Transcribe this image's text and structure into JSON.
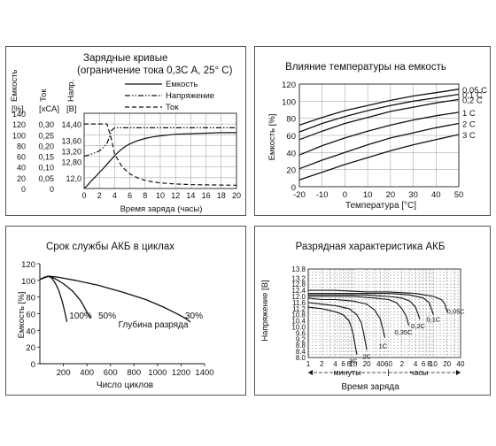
{
  "chart_data": [
    {
      "type": "line",
      "title": "Зарядные кривые",
      "subtitle": "(ограничение тока 0,3С А, 25° С)",
      "xlabel": "Время заряда (часы)",
      "xlim": [
        0,
        20
      ],
      "x_ticks": [
        "0",
        "2",
        "4",
        "6",
        "8",
        "10",
        "12",
        "14",
        "16",
        "18",
        "20"
      ],
      "axes": [
        {
          "label": "Емкость",
          "unit": "[%]",
          "ticks": [
            "140",
            "120",
            "100",
            "80",
            "60",
            "40",
            "20",
            "0"
          ],
          "range": [
            0,
            140
          ]
        },
        {
          "label": "Ток",
          "unit": "[хСА]",
          "ticks": [
            "0,30",
            "0,25",
            "0,20",
            "0,15",
            "0,10",
            "0,05",
            "0"
          ],
          "range": [
            0,
            0.35
          ]
        },
        {
          "label": "Напр.",
          "unit": "[В]",
          "ticks": [
            "14,40",
            "13,60",
            "13,20",
            "12,80",
            "12,0"
          ]
        }
      ],
      "legend": [
        {
          "name": "Емкость",
          "style": "solid"
        },
        {
          "name": "Напряжение",
          "style": "dashdot"
        },
        {
          "name": "Ток",
          "style": "dashed"
        }
      ],
      "series": [
        {
          "name": "Емкость",
          "x": [
            0,
            0.5,
            1,
            1.5,
            2,
            2.5,
            3,
            3.5,
            4,
            4.5,
            5,
            5.5,
            6,
            6.5,
            7,
            8,
            9,
            10,
            12,
            14,
            16,
            18,
            20
          ],
          "y": [
            0,
            7,
            15,
            22,
            30,
            37,
            45,
            53,
            61,
            68,
            74,
            79,
            83,
            86,
            89,
            93,
            96,
            98,
            101,
            102,
            103,
            104,
            104
          ]
        },
        {
          "name": "Напряжение",
          "x": [
            0,
            1,
            2,
            2.5,
            3,
            3.3,
            3.6,
            4,
            20
          ],
          "y": [
            60,
            64,
            70,
            76,
            84,
            95,
            108,
            113,
            113
          ]
        },
        {
          "name": "Ток",
          "x": [
            0,
            2.5,
            3,
            3.5,
            4,
            5,
            6,
            7,
            8,
            9,
            10,
            12,
            14,
            16,
            18,
            20
          ],
          "y": [
            0.3,
            0.3,
            0.3,
            0.24,
            0.16,
            0.1,
            0.068,
            0.05,
            0.038,
            0.031,
            0.026,
            0.021,
            0.018,
            0.017,
            0.016,
            0.015
          ]
        }
      ]
    },
    {
      "type": "line",
      "title": "Влияние температуры на емкость",
      "xlabel": "Температура [°С]",
      "ylabel": "Емкость [%]",
      "xlim": [
        -20,
        50
      ],
      "ylim": [
        0,
        120
      ],
      "x_ticks": [
        "-20",
        "-10",
        "0",
        "10",
        "20",
        "30",
        "40",
        "50"
      ],
      "y_ticks": [
        "120",
        "100",
        "80",
        "60",
        "40",
        "20",
        "0"
      ],
      "series": [
        {
          "name": "0,05 C",
          "x": [
            -20,
            -10,
            0,
            10,
            20,
            30,
            40,
            50
          ],
          "y": [
            72,
            81,
            89,
            95,
            101,
            106,
            110,
            114
          ]
        },
        {
          "name": "0,1 C",
          "x": [
            -20,
            -10,
            0,
            10,
            20,
            30,
            40,
            50
          ],
          "y": [
            64,
            74,
            82,
            89,
            95,
            100,
            104,
            108
          ]
        },
        {
          "name": "0,2 C",
          "x": [
            -20,
            -10,
            0,
            10,
            20,
            30,
            40,
            50
          ],
          "y": [
            55,
            65,
            74,
            81,
            88,
            93,
            98,
            102
          ]
        },
        {
          "name": "1 C",
          "x": [
            -20,
            -10,
            0,
            10,
            20,
            30,
            40,
            50
          ],
          "y": [
            37,
            48,
            57,
            65,
            72,
            78,
            83,
            87
          ]
        },
        {
          "name": "2 C",
          "x": [
            -20,
            -10,
            0,
            10,
            20,
            30,
            40,
            50
          ],
          "y": [
            21,
            31,
            40,
            49,
            57,
            63,
            69,
            74
          ]
        },
        {
          "name": "3 C",
          "x": [
            -20,
            -10,
            0,
            10,
            20,
            30,
            40,
            50
          ],
          "y": [
            8,
            17,
            26,
            34,
            42,
            49,
            55,
            61
          ]
        }
      ]
    },
    {
      "type": "line",
      "title": "Срок службы АКБ в циклах",
      "xlabel": "Число циклов",
      "ylabel": "Емкость [%]",
      "xlim": [
        0,
        1400
      ],
      "ylim": [
        0,
        120
      ],
      "x_ticks": [
        "200",
        "400",
        "600",
        "800",
        "1000",
        "1200",
        "1400"
      ],
      "y_ticks": [
        "120",
        "100",
        "80",
        "60",
        "40",
        "20",
        "0"
      ],
      "annotation": "Глубина разряда",
      "series": [
        {
          "name": "100%",
          "x": [
            0,
            40,
            70,
            100,
            130,
            160,
            190,
            215,
            230
          ],
          "y": [
            101,
            104,
            105,
            103,
            97,
            88,
            75,
            60,
            50
          ]
        },
        {
          "name": "50%",
          "x": [
            0,
            50,
            80,
            130,
            200,
            280,
            350,
            400,
            430
          ],
          "y": [
            101,
            104,
            105,
            102,
            96,
            87,
            75,
            62,
            55
          ]
        },
        {
          "name": "30%",
          "x": [
            0,
            50,
            80,
            150,
            300,
            500,
            700,
            900,
            1050,
            1150,
            1230,
            1280
          ],
          "y": [
            101,
            104,
            105,
            104,
            100,
            94,
            86,
            77,
            68,
            61,
            55,
            50
          ]
        }
      ]
    },
    {
      "type": "line",
      "title": "Разрядная характеристика АКБ",
      "ylabel": "Напряжение [В]",
      "xlabel": "Время заряда",
      "x_scale": "log",
      "x_ticks_minutes": [
        "1",
        "2",
        "4",
        "6",
        "8",
        "10",
        "20",
        "40",
        "60"
      ],
      "x_ticks_hours": [
        "2",
        "4",
        "6",
        "8",
        "10",
        "20",
        "40"
      ],
      "x_group_minutes": "минуты",
      "x_group_hours": "часы",
      "y_ticks": [
        "13.8",
        "13.2",
        "12.8",
        "12.4",
        "12.0",
        "11.6",
        "11.2",
        "10.8",
        "10.4",
        "10.0",
        "9.6",
        "9.2",
        "8.8",
        "8.4",
        "8.0"
      ],
      "ylim": [
        8.0,
        13.8
      ],
      "series": [
        {
          "name": "3C",
          "x_min": [
            1,
            2,
            4,
            6,
            8,
            9,
            10,
            11,
            12
          ],
          "y": [
            11.3,
            11.2,
            11.0,
            10.8,
            10.4,
            10.0,
            9.5,
            8.8,
            8.2
          ]
        },
        {
          "name": "2C",
          "x_min": [
            1,
            2,
            4,
            8,
            12,
            15,
            17,
            18.5,
            20
          ],
          "y": [
            11.6,
            11.5,
            11.4,
            11.2,
            10.8,
            10.3,
            9.6,
            9.0,
            8.5
          ]
        },
        {
          "name": "1C",
          "x_min": [
            1,
            2,
            4,
            10,
            20,
            30,
            40,
            45,
            50
          ],
          "y": [
            11.9,
            11.8,
            11.8,
            11.7,
            11.5,
            11.1,
            10.5,
            9.9,
            9.3
          ]
        },
        {
          "name": "0,35C",
          "x_min": [
            1,
            4,
            10,
            30,
            60,
            90,
            120,
            150,
            170
          ],
          "y": [
            12.0,
            12.0,
            12.0,
            11.9,
            11.8,
            11.6,
            11.2,
            10.7,
            10.1
          ]
        },
        {
          "name": "0,2C",
          "x_min": [
            1,
            4,
            20,
            60,
            120,
            180,
            240,
            270,
            300
          ],
          "y": [
            12.1,
            12.1,
            12.1,
            12.0,
            11.9,
            11.7,
            11.3,
            10.9,
            10.5
          ]
        },
        {
          "name": "0,1C",
          "x_min": [
            1,
            4,
            20,
            60,
            180,
            360,
            480,
            540,
            600
          ],
          "y": [
            12.2,
            12.2,
            12.2,
            12.2,
            12.1,
            11.9,
            11.6,
            11.2,
            10.8
          ]
        },
        {
          "name": "0,05C",
          "x_min": [
            1,
            4,
            20,
            60,
            240,
            600,
            900,
            1080,
            1200
          ],
          "y": [
            12.4,
            12.4,
            12.3,
            12.3,
            12.2,
            12.0,
            11.8,
            11.5,
            11.0
          ]
        }
      ]
    }
  ]
}
